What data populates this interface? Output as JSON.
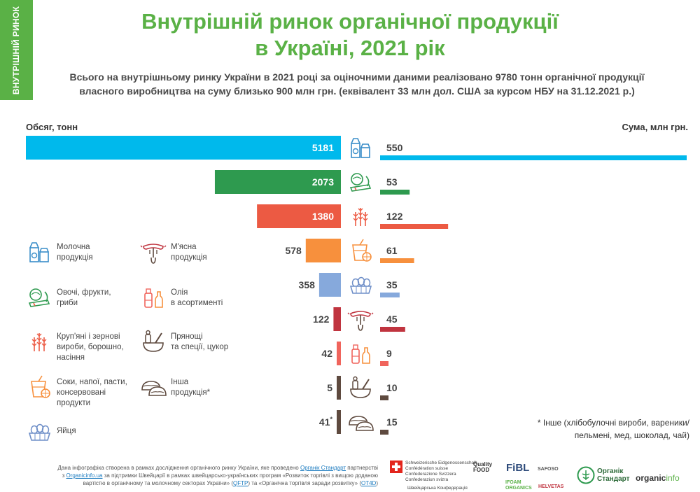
{
  "side_tab": "ВНУТРІШНІЙ РИНОК",
  "title_line1": "Внутрішній ринок органічної продукції",
  "title_line2": "в Україні, 2021 рік",
  "subtitle_line1": "Всього на внутрішньому ринку України в 2021 році за оціночними даними реалізовано 9780 тонн органічної продукції",
  "subtitle_line2": "власного виробництва на суму близько 900 млн грн. (еквівалент 33 млн дол. США за курсом НБУ на 31.12.2021 р.)",
  "colors": {
    "green": "#5ab146",
    "accent": "#5ab146"
  },
  "chart_data": {
    "type": "bar",
    "xlabel_left": "Обсяг, тонн",
    "xlabel_right": "Сума, млн грн.",
    "categories": [
      "Молочна продукція",
      "Овочі, фрукти, гриби",
      "Круп'яні і зернові вироби, борошно, насіння",
      "Соки, напої, пасти, консервовані продукти",
      "Яйця",
      "М'ясна продукція",
      "Олія в асортименті",
      "Прянощі та спеції, цукор",
      "Інша продукція*"
    ],
    "icons": [
      "milk-icon",
      "vegetables-icon",
      "grain-icon",
      "juice-icon",
      "eggs-icon",
      "meat-icon",
      "oil-icon",
      "spices-icon",
      "dumplings-icon"
    ],
    "bar_colors": [
      "#00b9ec",
      "#2e9a4f",
      "#ec5a43",
      "#f7903d",
      "#86a9dc",
      "#c0343f",
      "#f0645c",
      "#5e4a3f",
      "#5e4a3f"
    ],
    "series": [
      {
        "name": "Обсяг, тонн",
        "values": [
          5181,
          2073,
          1380,
          578,
          358,
          122,
          42,
          5,
          41
        ],
        "labels": [
          "5181",
          "2073",
          "1380",
          "578",
          "358",
          "122",
          "42",
          "5",
          "41"
        ],
        "sup": [
          "",
          "",
          "",
          "",
          "",
          "",
          "",
          "",
          "*"
        ]
      },
      {
        "name": "Сума, млн грн.",
        "values": [
          550,
          53,
          122,
          61,
          35,
          45,
          9,
          10,
          15
        ],
        "labels": [
          "550",
          "53",
          "122",
          "61",
          "35",
          "45",
          "9",
          "10",
          "15"
        ]
      }
    ],
    "xlim_left": [
      0,
      5181
    ],
    "xlim_right": [
      0,
      550
    ]
  },
  "legend": [
    {
      "icon": "milk-icon",
      "lines": [
        "Молочна",
        "продукція"
      ]
    },
    {
      "icon": "meat-icon",
      "lines": [
        "М'ясна",
        "продукція"
      ]
    },
    {
      "icon": "vegetables-icon",
      "lines": [
        "Овочі, фрукти,",
        "гриби"
      ]
    },
    {
      "icon": "oil-icon",
      "lines": [
        "Олія",
        "в асортименті"
      ]
    },
    {
      "icon": "grain-icon",
      "lines": [
        "Круп'яні і зернові",
        "вироби, борошно,",
        "насіння"
      ]
    },
    {
      "icon": "spices-icon",
      "lines": [
        "Прянощі",
        "та спеції, цукор"
      ]
    },
    {
      "icon": "juice-icon",
      "lines": [
        "Соки, напої, пасти,",
        "консервовані",
        "продукти"
      ]
    },
    {
      "icon": "dumplings-icon",
      "lines": [
        "Інша",
        "продукція*"
      ]
    },
    {
      "icon": "eggs-icon",
      "lines": [
        "Яйця"
      ]
    }
  ],
  "note_line1": "* Інше (хлібобулочні вироби, вареники/",
  "note_line2": "пельмені, мед, шоколад, чай)",
  "footer": {
    "p1": "Дана інфографіка створена в рамках дослідження органічного ринку України, яке проведено ",
    "l1": "Органік Стандарт",
    "p2": " партнерстві",
    "p3": "з ",
    "l2": "Organicinfo.ua",
    "p4": " за підтримки Швейцарії в рамках швейцарсько-українських програм «Розвиток торгівлі з вищою доданою",
    "p5": "вартістю в органічному та молочному секторах України» (",
    "l3": "QFTP",
    "p6": ") та «Органічна торгівля заради розвитку» (",
    "l4": "OT4D",
    "p7": ")"
  },
  "logos": {
    "swiss_lines": [
      "Schweizerische Eidgenossenschaft",
      "Confédération suisse",
      "Confederazione Svizzera",
      "Confederaziun svizra"
    ],
    "swiss_ua": "Швейцарська Конфедерація",
    "quality": "Quality",
    "food": "FOOD",
    "fibl": "FiBL",
    "safoso": "SAFOSO",
    "helvetas": "HELVETAS",
    "ifoam": "IFOAM",
    "organics": "ORGANICS",
    "organic_standard_1": "Органік",
    "organic_standard_2": "Стандарт",
    "organicinfo_a": "organic",
    "organicinfo_b": "info"
  }
}
